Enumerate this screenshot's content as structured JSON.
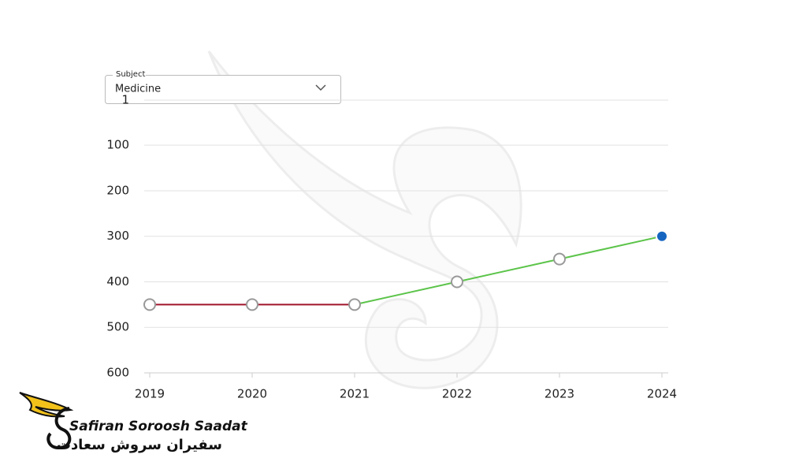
{
  "dropdown": {
    "label": "Subject",
    "value": "Medicine"
  },
  "logo": {
    "name": "Safiran Soroosh Saadat",
    "name_fa": "سفیران سروش سعادت"
  },
  "chart_data": {
    "type": "line",
    "categories": [
      "2019",
      "2020",
      "2021",
      "2022",
      "2023",
      "2024"
    ],
    "series": [
      {
        "color": "#a0142a",
        "values": [
          450,
          450,
          450,
          null,
          null,
          null
        ]
      },
      {
        "color": "#5cc44a",
        "values": [
          null,
          null,
          450,
          400,
          350,
          300
        ]
      }
    ],
    "highlight_color": "#1565c0",
    "ylim": [
      600,
      1
    ],
    "yticks": [
      1,
      100,
      200,
      300,
      400,
      500,
      600
    ],
    "grid": true
  }
}
